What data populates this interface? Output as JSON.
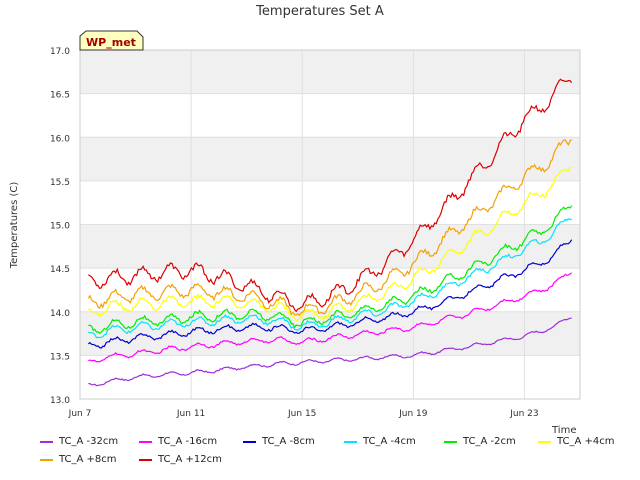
{
  "chart_data": {
    "type": "line",
    "title": "Temperatures Set A",
    "ylabel": "Temperatures (C)",
    "xlabel": "Time",
    "badge": "WP_met",
    "xlim_days": [
      7,
      25
    ],
    "ylim": [
      13.0,
      17.0
    ],
    "yticks": [
      "13.0",
      "13.5",
      "14.0",
      "14.5",
      "15.0",
      "15.5",
      "16.0",
      "16.5",
      "17.0"
    ],
    "xticks": [
      {
        "day": 7,
        "label": "Jun 7"
      },
      {
        "day": 11,
        "label": "Jun 11"
      },
      {
        "day": 15,
        "label": "Jun 15"
      },
      {
        "day": 19,
        "label": "Jun 19"
      },
      {
        "day": 23,
        "label": "Jun 23"
      }
    ],
    "grid": true,
    "legend_position": "bottom",
    "x_days": [
      7.3,
      8,
      9,
      10,
      11,
      12,
      13,
      14,
      15,
      16,
      17,
      18,
      19,
      20,
      21,
      22,
      23,
      24,
      24.7
    ],
    "series": [
      {
        "name": "TC_A -32cm",
        "color": "#9b30d9",
        "values": [
          13.15,
          13.2,
          13.25,
          13.28,
          13.3,
          13.33,
          13.37,
          13.4,
          13.42,
          13.44,
          13.46,
          13.48,
          13.5,
          13.55,
          13.6,
          13.66,
          13.72,
          13.82,
          13.95
        ]
      },
      {
        "name": "TC_A -16cm",
        "color": "#ff00ff",
        "values": [
          13.42,
          13.48,
          13.52,
          13.56,
          13.6,
          13.63,
          13.66,
          13.68,
          13.65,
          13.7,
          13.74,
          13.78,
          13.82,
          13.9,
          13.98,
          14.08,
          14.18,
          14.3,
          14.47
        ]
      },
      {
        "name": "TC_A -8cm",
        "color": "#0000cc",
        "values": [
          13.6,
          13.65,
          13.7,
          13.73,
          13.77,
          13.8,
          13.82,
          13.82,
          13.78,
          13.82,
          13.88,
          13.93,
          14.0,
          14.1,
          14.22,
          14.35,
          14.48,
          14.62,
          14.85
        ]
      },
      {
        "name": "TC_A -4cm",
        "color": "#00e5ff",
        "values": [
          13.72,
          13.78,
          13.82,
          13.85,
          13.88,
          13.9,
          13.92,
          13.9,
          13.83,
          13.88,
          13.95,
          14.02,
          14.12,
          14.25,
          14.4,
          14.55,
          14.72,
          14.88,
          15.12
        ]
      },
      {
        "name": "TC_A -2cm",
        "color": "#00ee00",
        "values": [
          13.78,
          13.84,
          13.88,
          13.9,
          13.94,
          13.96,
          13.97,
          13.95,
          13.87,
          13.93,
          14.0,
          14.08,
          14.18,
          14.32,
          14.48,
          14.65,
          14.82,
          15.0,
          15.27
        ]
      },
      {
        "name": "TC_A +4cm",
        "color": "#ffff00",
        "values": [
          13.98,
          14.05,
          14.08,
          14.1,
          14.12,
          14.12,
          14.1,
          14.05,
          13.95,
          14.0,
          14.1,
          14.22,
          14.38,
          14.58,
          14.8,
          15.02,
          15.25,
          15.45,
          15.7
        ]
      },
      {
        "name": "TC_A +8cm",
        "color": "#f5a000",
        "values": [
          14.1,
          14.15,
          14.2,
          14.22,
          14.25,
          14.22,
          14.18,
          14.1,
          14.0,
          14.08,
          14.2,
          14.35,
          14.55,
          14.8,
          15.05,
          15.3,
          15.55,
          15.75,
          16.02
        ]
      },
      {
        "name": "TC_A +12cm",
        "color": "#dd0000",
        "values": [
          14.35,
          14.38,
          14.42,
          14.45,
          14.48,
          14.4,
          14.3,
          14.18,
          14.08,
          14.18,
          14.35,
          14.55,
          14.82,
          15.15,
          15.5,
          15.85,
          16.2,
          16.45,
          16.72
        ]
      }
    ]
  }
}
